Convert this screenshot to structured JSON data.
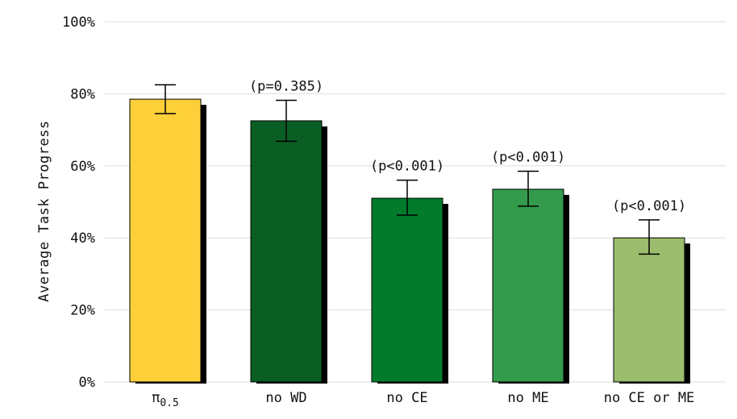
{
  "chart_data": {
    "type": "bar",
    "title": "",
    "xlabel": "",
    "ylabel": "Average Task Progress",
    "ylim": [
      0,
      100
    ],
    "yticks": [
      {
        "value": 0,
        "label": "0%"
      },
      {
        "value": 20,
        "label": "20%"
      },
      {
        "value": 40,
        "label": "40%"
      },
      {
        "value": 60,
        "label": "60%"
      },
      {
        "value": 80,
        "label": "80%"
      },
      {
        "value": 100,
        "label": "100%"
      }
    ],
    "grid": true,
    "categories": [
      {
        "main": "π",
        "sub": "0.5"
      },
      {
        "main": "no WD",
        "sub": ""
      },
      {
        "main": "no CE",
        "sub": ""
      },
      {
        "main": "no ME",
        "sub": ""
      },
      {
        "main": "no CE or ME",
        "sub": ""
      }
    ],
    "values": [
      78.5,
      72.5,
      51.0,
      53.5,
      40.0
    ],
    "error_low": [
      74.5,
      66.8,
      46.3,
      48.8,
      35.5
    ],
    "error_high": [
      82.5,
      78.2,
      56.0,
      58.5,
      45.0
    ],
    "annotations": [
      "",
      "(p=0.385)",
      "(p<0.001)",
      "(p<0.001)",
      "(p<0.001)"
    ],
    "colors": [
      "#fdd03a",
      "#0a5e24",
      "#027b2b",
      "#349b4c",
      "#9bbd6d"
    ]
  }
}
